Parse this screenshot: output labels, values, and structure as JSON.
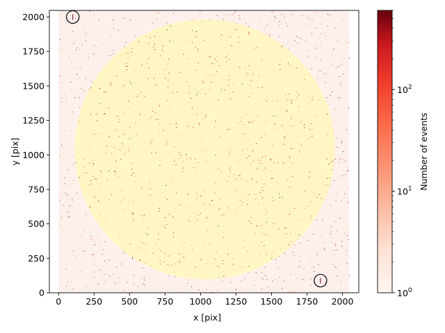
{
  "chart_data": {
    "type": "heatmap",
    "title": "",
    "xlabel": "x [pix]",
    "ylabel": "y [pix]",
    "xlim": [
      -65,
      2115
    ],
    "ylim": [
      0,
      2048
    ],
    "xticks": [
      0,
      250,
      500,
      750,
      1000,
      1250,
      1500,
      1750,
      2000
    ],
    "yticks": [
      0,
      250,
      500,
      750,
      1000,
      1250,
      1500,
      1750,
      2000
    ],
    "xtick_labels": [
      "0",
      "250",
      "500",
      "750",
      "1000",
      "1250",
      "1500",
      "1750",
      "2000"
    ],
    "ytick_labels": [
      "0",
      "250",
      "500",
      "750",
      "1000",
      "1250",
      "1500",
      "1750",
      "2000"
    ],
    "detector_extent": {
      "x": [
        0,
        2048
      ],
      "y": [
        0,
        2048
      ]
    },
    "grid": false,
    "colormap": "Reds",
    "scale": "log",
    "colorbar": {
      "label": "Number of events",
      "range": [
        1,
        600
      ],
      "ticks": [
        1,
        10,
        100
      ],
      "tick_labels": [
        "10^0",
        "10^1",
        "10^2"
      ],
      "tick_bases": [
        "10",
        "10",
        "10"
      ],
      "tick_exponents": [
        "0",
        "1",
        "2"
      ]
    },
    "exclusion_region": {
      "shape": "circle",
      "center": [
        1030,
        1040
      ],
      "radius": 930,
      "color": "#fff6c4"
    },
    "marked_sources": [
      {
        "x": 100,
        "y": 2000,
        "radius": 45
      },
      {
        "x": 1845,
        "y": 88,
        "radius": 45
      }
    ],
    "colors": {
      "background": "#fdf0ec",
      "cmap_low": "#fff5f0",
      "cmap_high": "#67000d"
    }
  }
}
